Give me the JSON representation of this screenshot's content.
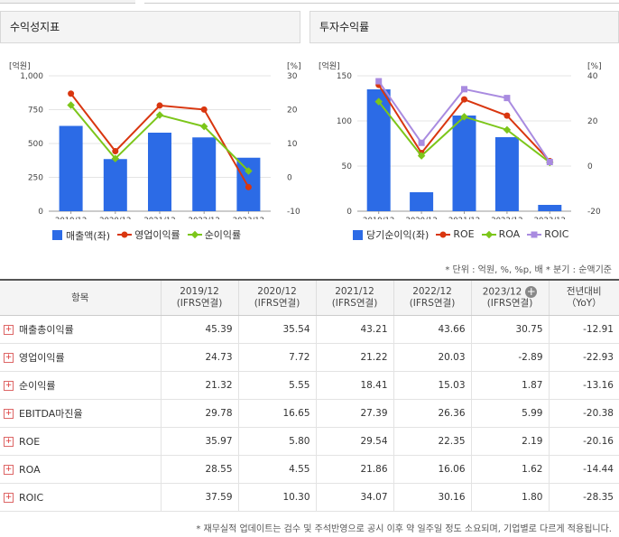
{
  "panels": [
    {
      "title": "수익성지표",
      "legend": [
        {
          "label": "매출액(좌)",
          "kind": "bar",
          "color": "#2c6be6"
        },
        {
          "label": "영업이익률",
          "kind": "line",
          "color": "#d9360f"
        },
        {
          "label": "순이익률",
          "kind": "line",
          "color": "#7cc61a"
        }
      ]
    },
    {
      "title": "투자수익률",
      "legend": [
        {
          "label": "당기순이익(좌)",
          "kind": "bar",
          "color": "#2c6be6"
        },
        {
          "label": "ROE",
          "kind": "line",
          "color": "#d9360f"
        },
        {
          "label": "ROA",
          "kind": "line",
          "color": "#7cc61a"
        },
        {
          "label": "ROIC",
          "kind": "line",
          "color": "#a98be0"
        }
      ]
    }
  ],
  "chart_data": [
    {
      "type": "bar",
      "title": "수익성지표",
      "categories": [
        "2019/12",
        "2020/12",
        "2021/12",
        "2022/12",
        "2023/12"
      ],
      "left_unit": "[억원]",
      "right_unit": "[%]",
      "left_ticks": [
        "1,000",
        "750",
        "500",
        "250",
        "0"
      ],
      "right_ticks": [
        "30",
        "20",
        "10",
        "0",
        "-10"
      ],
      "ylim_left": [
        0,
        1000
      ],
      "ylim_right": [
        -10,
        30
      ],
      "bars": {
        "name": "매출액(좌)",
        "values": [
          630,
          385,
          580,
          545,
          395
        ]
      },
      "series": [
        {
          "name": "영업이익률",
          "color": "#d9360f",
          "values": [
            24.73,
            7.72,
            21.22,
            20.03,
            -2.89
          ]
        },
        {
          "name": "순이익률",
          "color": "#7cc61a",
          "values": [
            21.32,
            5.55,
            18.41,
            15.03,
            1.87
          ]
        }
      ]
    },
    {
      "type": "bar",
      "title": "투자수익률",
      "categories": [
        "2019/12",
        "2020/12",
        "2021/12",
        "2022/12",
        "2023/12"
      ],
      "left_unit": "[억원]",
      "right_unit": "[%]",
      "left_ticks": [
        "150",
        "100",
        "50",
        "0"
      ],
      "right_ticks": [
        "40",
        "20",
        "0",
        "-20"
      ],
      "ylim_left": [
        0,
        150
      ],
      "ylim_right": [
        -20,
        40
      ],
      "bars": {
        "name": "당기순이익(좌)",
        "values": [
          135,
          21,
          106,
          82,
          7
        ]
      },
      "series": [
        {
          "name": "ROE",
          "color": "#d9360f",
          "values": [
            35.97,
            5.8,
            29.54,
            22.35,
            2.19
          ]
        },
        {
          "name": "ROA",
          "color": "#7cc61a",
          "values": [
            28.55,
            4.55,
            21.86,
            16.06,
            1.62
          ]
        },
        {
          "name": "ROIC",
          "color": "#a98be0",
          "values": [
            37.59,
            10.3,
            34.07,
            30.16,
            1.8
          ]
        }
      ]
    }
  ],
  "note": "* 단위 : 억원, %, %p, 배    * 분기 : 순액기준",
  "table": {
    "header_item": "항목",
    "columns": [
      {
        "year": "2019/12",
        "basis": "(IFRS연결)"
      },
      {
        "year": "2020/12",
        "basis": "(IFRS연결)"
      },
      {
        "year": "2021/12",
        "basis": "(IFRS연결)"
      },
      {
        "year": "2022/12",
        "basis": "(IFRS연결)"
      },
      {
        "year": "2023/12",
        "basis": "(IFRS연결)"
      }
    ],
    "yoy_header": "전년대비",
    "yoy_sub": "（YoY）",
    "rows": [
      {
        "label": "매출총이익률",
        "values": [
          "45.39",
          "35.54",
          "43.21",
          "43.66",
          "30.75"
        ],
        "yoy": "-12.91"
      },
      {
        "label": "영업이익률",
        "values": [
          "24.73",
          "7.72",
          "21.22",
          "20.03",
          "-2.89"
        ],
        "yoy": "-22.93"
      },
      {
        "label": "순이익률",
        "values": [
          "21.32",
          "5.55",
          "18.41",
          "15.03",
          "1.87"
        ],
        "yoy": "-13.16"
      },
      {
        "label": "EBITDA마진율",
        "values": [
          "29.78",
          "16.65",
          "27.39",
          "26.36",
          "5.99"
        ],
        "yoy": "-20.38"
      },
      {
        "label": "ROE",
        "values": [
          "35.97",
          "5.80",
          "29.54",
          "22.35",
          "2.19"
        ],
        "yoy": "-20.16"
      },
      {
        "label": "ROA",
        "values": [
          "28.55",
          "4.55",
          "21.86",
          "16.06",
          "1.62"
        ],
        "yoy": "-14.44"
      },
      {
        "label": "ROIC",
        "values": [
          "37.59",
          "10.30",
          "34.07",
          "30.16",
          "1.80"
        ],
        "yoy": "-28.35"
      }
    ]
  },
  "footnote": "* 재무실적 업데이트는 검수 및 주석반영으로 공시 이후 약 일주일 정도 소요되며, 기업별로 다르게 적용됩니다."
}
